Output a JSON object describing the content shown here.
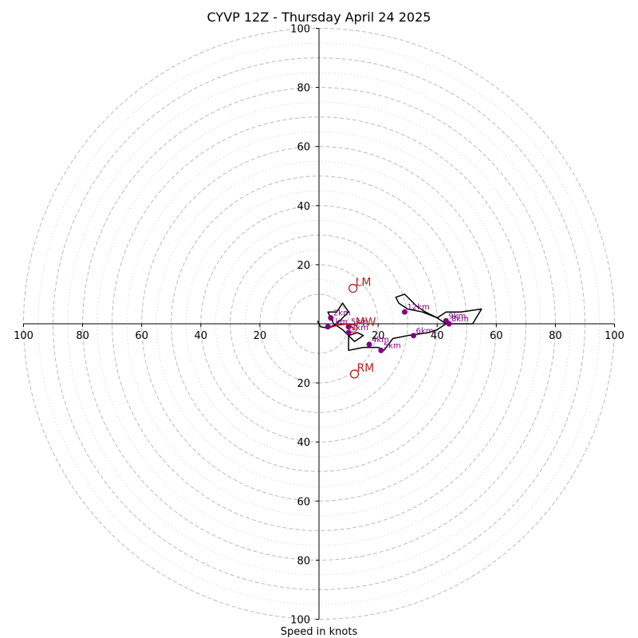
{
  "chart_data": {
    "type": "scatter",
    "title": "CYVP 12Z - Thursday April 24 2025",
    "xlabel": "Speed in knots",
    "ylabel": "",
    "xlim": [
      -100,
      100
    ],
    "ylim": [
      -100,
      100
    ],
    "grid": true,
    "x_tick_labels": [
      "100",
      "80",
      "60",
      "40",
      "20",
      "20",
      "40",
      "60",
      "80",
      "100"
    ],
    "x_tick_values": [
      -100,
      -80,
      -60,
      -40,
      -20,
      20,
      40,
      60,
      80,
      100
    ],
    "y_tick_labels": [
      "100",
      "80",
      "60",
      "40",
      "20",
      "20",
      "40",
      "60",
      "80",
      "100"
    ],
    "y_tick_values": [
      100,
      80,
      60,
      40,
      20,
      -20,
      -40,
      -60,
      -80,
      -100
    ],
    "rings_major": [
      10,
      20,
      30,
      40,
      50,
      60,
      70,
      80,
      90,
      100
    ],
    "rings_minor": [
      15,
      25,
      35,
      45,
      55,
      65,
      75,
      85,
      95
    ],
    "hodograph": {
      "color": "#000000",
      "points": [
        [
          -0.5,
          1
        ],
        [
          0.5,
          -1
        ],
        [
          3,
          -1.5
        ],
        [
          6,
          0
        ],
        [
          8,
          2
        ],
        [
          10,
          4
        ],
        [
          8,
          7
        ],
        [
          6,
          4
        ],
        [
          3,
          4
        ],
        [
          5,
          0
        ],
        [
          8,
          -2
        ],
        [
          10,
          -4
        ],
        [
          12,
          -6
        ],
        [
          15,
          -4
        ],
        [
          13,
          -3
        ],
        [
          10,
          -4
        ],
        [
          10,
          -9
        ],
        [
          15,
          -8
        ],
        [
          20,
          -8
        ],
        [
          22,
          -9
        ],
        [
          25,
          -5
        ],
        [
          30,
          -4
        ],
        [
          37,
          -3
        ],
        [
          40,
          -2
        ],
        [
          43,
          0
        ],
        [
          40,
          2
        ],
        [
          35,
          4
        ],
        [
          30,
          5
        ],
        [
          27,
          7
        ],
        [
          26,
          9
        ],
        [
          29,
          10
        ],
        [
          31,
          8
        ],
        [
          33,
          6
        ],
        [
          36,
          4
        ],
        [
          40,
          2
        ],
        [
          43,
          4
        ],
        [
          48,
          4
        ],
        [
          55,
          5
        ],
        [
          52,
          0
        ],
        [
          48,
          0
        ],
        [
          43,
          0
        ]
      ]
    },
    "mean_wind": {
      "color": "#cc0000",
      "points": [
        [
          3,
          -1.5
        ],
        [
          6,
          -0.5
        ],
        [
          10,
          0
        ],
        [
          12,
          -2
        ]
      ]
    },
    "km_markers": [
      {
        "label": "12km",
        "x": 29,
        "y": 4
      },
      {
        "label": "9km",
        "x": 43,
        "y": 1
      },
      {
        "label": "8km",
        "x": 44,
        "y": 0
      },
      {
        "label": "6km",
        "x": 32,
        "y": -4
      },
      {
        "label": "5km",
        "x": 21,
        "y": -9
      },
      {
        "label": "4km",
        "x": 17,
        "y": -7
      },
      {
        "label": "3km",
        "x": 10,
        "y": -3
      },
      {
        "label": "5km",
        "x": 10,
        "y": -1
      },
      {
        "label": "2km",
        "x": 4,
        "y": 2
      },
      {
        "label": "1km",
        "x": 3,
        "y": -1
      }
    ],
    "storm_motion": [
      {
        "label": "LM",
        "x": 11.5,
        "y": 12
      },
      {
        "label": "MW",
        "x": 11.5,
        "y": -1.5
      },
      {
        "label": "RM",
        "x": 12,
        "y": -17
      }
    ],
    "colors": {
      "hodograph": "#000000",
      "markers": "#800080",
      "storm_motion": "#b22222",
      "grid": "#bbbbbb"
    }
  }
}
